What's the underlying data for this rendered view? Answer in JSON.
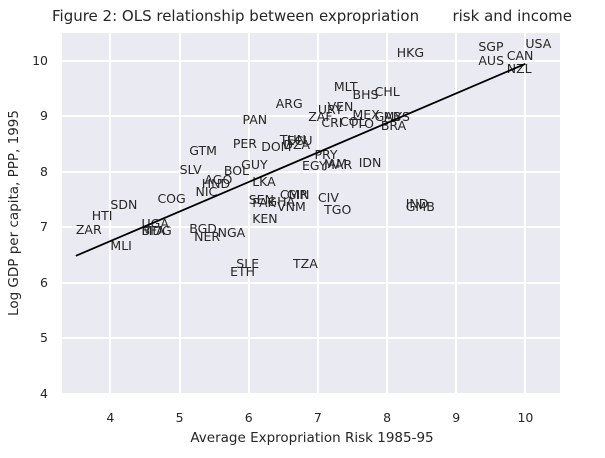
{
  "figure": {
    "title": "Figure 2: OLS relationship between expropriation       risk and income",
    "xlabel": "Average Expropriation Risk 1985-95",
    "ylabel": "Log GDP per capita, PPP, 1995"
  },
  "chart_data": {
    "type": "scatter",
    "marker_style": "country-code-text-labels",
    "title": "Figure 2: OLS relationship between expropriation       risk and income",
    "xlabel": "Average Expropriation Risk 1985-95",
    "ylabel": "Log GDP per capita, PPP, 1995",
    "xlim": [
      3.3,
      10.5
    ],
    "ylim": [
      4,
      10.5
    ],
    "x_ticks": [
      4,
      5,
      6,
      7,
      8,
      9,
      10
    ],
    "y_ticks": [
      4,
      5,
      6,
      7,
      8,
      9,
      10
    ],
    "grid": true,
    "plot_bg_color": "#eaeaf2",
    "gridline_color": "#ffffff",
    "text_color": "#262626",
    "trendline": {
      "kind": "ols-fit",
      "intercept": 4.6261,
      "slope": 0.5319,
      "x_start": 3.5,
      "x_end": 10.0,
      "color": "#000000"
    },
    "points": [
      {
        "label": "ZAR",
        "x": 3.5,
        "y": 6.87
      },
      {
        "label": "HTI",
        "x": 3.73,
        "y": 7.12
      },
      {
        "label": "MLI",
        "x": 4.0,
        "y": 6.57
      },
      {
        "label": "SDN",
        "x": 4.0,
        "y": 7.31
      },
      {
        "label": "UGA",
        "x": 4.45,
        "y": 6.97
      },
      {
        "label": "BFA",
        "x": 4.45,
        "y": 6.85
      },
      {
        "label": "MDG",
        "x": 4.45,
        "y": 6.84
      },
      {
        "label": "COG",
        "x": 4.68,
        "y": 7.42
      },
      {
        "label": "SLV",
        "x": 5.0,
        "y": 7.95
      },
      {
        "label": "GTM",
        "x": 5.14,
        "y": 8.29
      },
      {
        "label": "BGD",
        "x": 5.14,
        "y": 6.88
      },
      {
        "label": "NER",
        "x": 5.21,
        "y": 6.73
      },
      {
        "label": "NIC",
        "x": 5.23,
        "y": 7.54
      },
      {
        "label": "HND",
        "x": 5.32,
        "y": 7.69
      },
      {
        "label": "AGO",
        "x": 5.36,
        "y": 7.77
      },
      {
        "label": "NGA",
        "x": 5.55,
        "y": 6.81
      },
      {
        "label": "BOL",
        "x": 5.64,
        "y": 7.93
      },
      {
        "label": "ETH",
        "x": 5.73,
        "y": 6.11
      },
      {
        "label": "PER",
        "x": 5.77,
        "y": 8.41
      },
      {
        "label": "SLE",
        "x": 5.82,
        "y": 6.25
      },
      {
        "label": "GUY",
        "x": 5.89,
        "y": 8.04
      },
      {
        "label": "PAN",
        "x": 5.91,
        "y": 8.84
      },
      {
        "label": "SEN",
        "x": 6.0,
        "y": 7.4
      },
      {
        "label": "KEN",
        "x": 6.05,
        "y": 7.06
      },
      {
        "label": "LKA",
        "x": 6.05,
        "y": 7.73
      },
      {
        "label": "PAK",
        "x": 6.05,
        "y": 7.35
      },
      {
        "label": "DOM",
        "x": 6.18,
        "y": 8.36
      },
      {
        "label": "GHA",
        "x": 6.27,
        "y": 7.37
      },
      {
        "label": "ARG",
        "x": 6.39,
        "y": 9.13
      },
      {
        "label": "VNM",
        "x": 6.41,
        "y": 7.28
      },
      {
        "label": "CMR",
        "x": 6.45,
        "y": 7.5
      },
      {
        "label": "TUN",
        "x": 6.45,
        "y": 8.48
      },
      {
        "label": "DZA",
        "x": 6.5,
        "y": 8.39
      },
      {
        "label": "ECU",
        "x": 6.55,
        "y": 8.47
      },
      {
        "label": "GIN",
        "x": 6.55,
        "y": 7.49
      },
      {
        "label": "TZA",
        "x": 6.64,
        "y": 6.25
      },
      {
        "label": "EGY",
        "x": 6.77,
        "y": 8.01
      },
      {
        "label": "ZAF",
        "x": 6.86,
        "y": 8.89
      },
      {
        "label": "PRY",
        "x": 6.95,
        "y": 8.21
      },
      {
        "label": "CIV",
        "x": 7.0,
        "y": 7.44
      },
      {
        "label": "URY",
        "x": 7.0,
        "y": 9.03
      },
      {
        "label": "CRI",
        "x": 7.05,
        "y": 8.79
      },
      {
        "label": "JAM",
        "x": 7.09,
        "y": 8.06
      },
      {
        "label": "MAR",
        "x": 7.09,
        "y": 8.04
      },
      {
        "label": "TGO",
        "x": 7.09,
        "y": 7.22
      },
      {
        "label": "VEN",
        "x": 7.14,
        "y": 9.07
      },
      {
        "label": "MLT",
        "x": 7.23,
        "y": 9.43
      },
      {
        "label": "COL",
        "x": 7.32,
        "y": 8.81
      },
      {
        "label": "TTO",
        "x": 7.45,
        "y": 8.77
      },
      {
        "label": "BHS",
        "x": 7.5,
        "y": 9.29
      },
      {
        "label": "MEX",
        "x": 7.5,
        "y": 8.94
      },
      {
        "label": "IDN",
        "x": 7.59,
        "y": 8.07
      },
      {
        "label": "CHL",
        "x": 7.82,
        "y": 9.34
      },
      {
        "label": "GAB",
        "x": 7.82,
        "y": 8.9
      },
      {
        "label": "BRA",
        "x": 7.91,
        "y": 8.73
      },
      {
        "label": "MYS",
        "x": 7.95,
        "y": 8.89
      },
      {
        "label": "HKG",
        "x": 8.14,
        "y": 10.05
      },
      {
        "label": "IND",
        "x": 8.27,
        "y": 7.33
      },
      {
        "label": "GMB",
        "x": 8.27,
        "y": 7.27
      },
      {
        "label": "AUS",
        "x": 9.32,
        "y": 9.9
      },
      {
        "label": "SGP",
        "x": 9.32,
        "y": 10.15
      },
      {
        "label": "CAN",
        "x": 9.73,
        "y": 9.99
      },
      {
        "label": "NZL",
        "x": 9.73,
        "y": 9.76
      },
      {
        "label": "USA",
        "x": 10.0,
        "y": 10.22
      }
    ]
  }
}
